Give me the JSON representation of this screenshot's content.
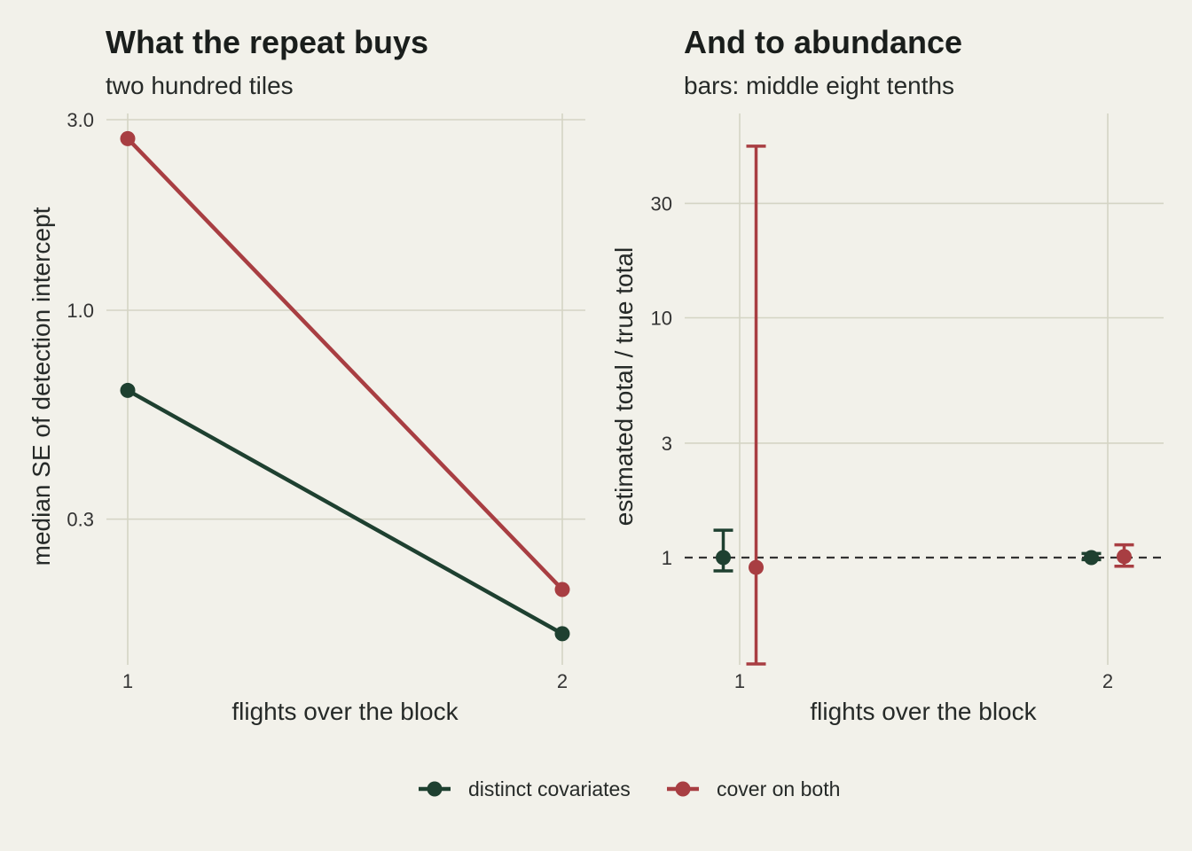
{
  "colors": {
    "distinct_covariates": "#1e4030",
    "cover_on_both": "#a83e42",
    "background": "#f2f1ea",
    "grid": "#d4d4c4",
    "reference_line": "#333333"
  },
  "legend": {
    "items": [
      {
        "label": "distinct covariates",
        "color": "#1e4030"
      },
      {
        "label": "cover on both",
        "color": "#a83e42"
      }
    ]
  },
  "chart_data": [
    {
      "type": "line",
      "title": "What the repeat buys",
      "subtitle": "two hundred tiles",
      "xlabel": "flights over the block",
      "ylabel": "median SE of detection intercept",
      "y_scale": "log",
      "ylim": [
        0.13,
        3.0
      ],
      "xlim": [
        1,
        2
      ],
      "x_ticks": [
        "1",
        "2"
      ],
      "y_ticks": [
        "0.3",
        "1.0",
        "3.0"
      ],
      "grid": true,
      "x": [
        1,
        2
      ],
      "series": [
        {
          "name": "distinct covariates",
          "values": [
            0.63,
            0.155
          ]
        },
        {
          "name": "cover on both",
          "values": [
            2.69,
            0.2
          ]
        }
      ]
    },
    {
      "type": "scatter",
      "title": "And to abundance",
      "subtitle": "bars: middle eight tenths",
      "xlabel": "flights over the block",
      "ylabel": "estimated total / true total",
      "y_scale": "log",
      "xlim": [
        1,
        2
      ],
      "x_ticks": [
        "1",
        "2"
      ],
      "y_ticks": [
        "1",
        "3",
        "10",
        "30"
      ],
      "grid": true,
      "reference_line": 1,
      "series": [
        {
          "name": "distinct covariates",
          "points": [
            {
              "x": 1,
              "y": 1.0,
              "low": 0.88,
              "high": 1.3
            },
            {
              "x": 2,
              "y": 1.0,
              "low": 0.98,
              "high": 1.04
            }
          ]
        },
        {
          "name": "cover on both",
          "points": [
            {
              "x": 1,
              "y": 0.91,
              "low": 0.36,
              "high": 52
            },
            {
              "x": 2,
              "y": 1.01,
              "low": 0.92,
              "high": 1.13
            }
          ]
        }
      ]
    }
  ]
}
